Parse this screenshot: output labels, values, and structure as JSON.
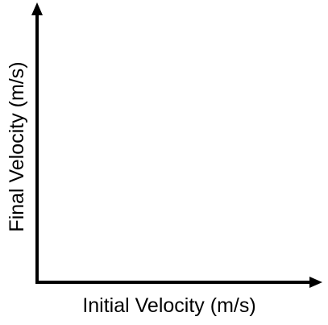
{
  "chart_data": {
    "type": "scatter",
    "title": "",
    "xlabel": "Initial Velocity (m/s)",
    "ylabel": "Final Velocity (m/s)",
    "grid": false,
    "series": [],
    "axis_color": "#000000"
  }
}
